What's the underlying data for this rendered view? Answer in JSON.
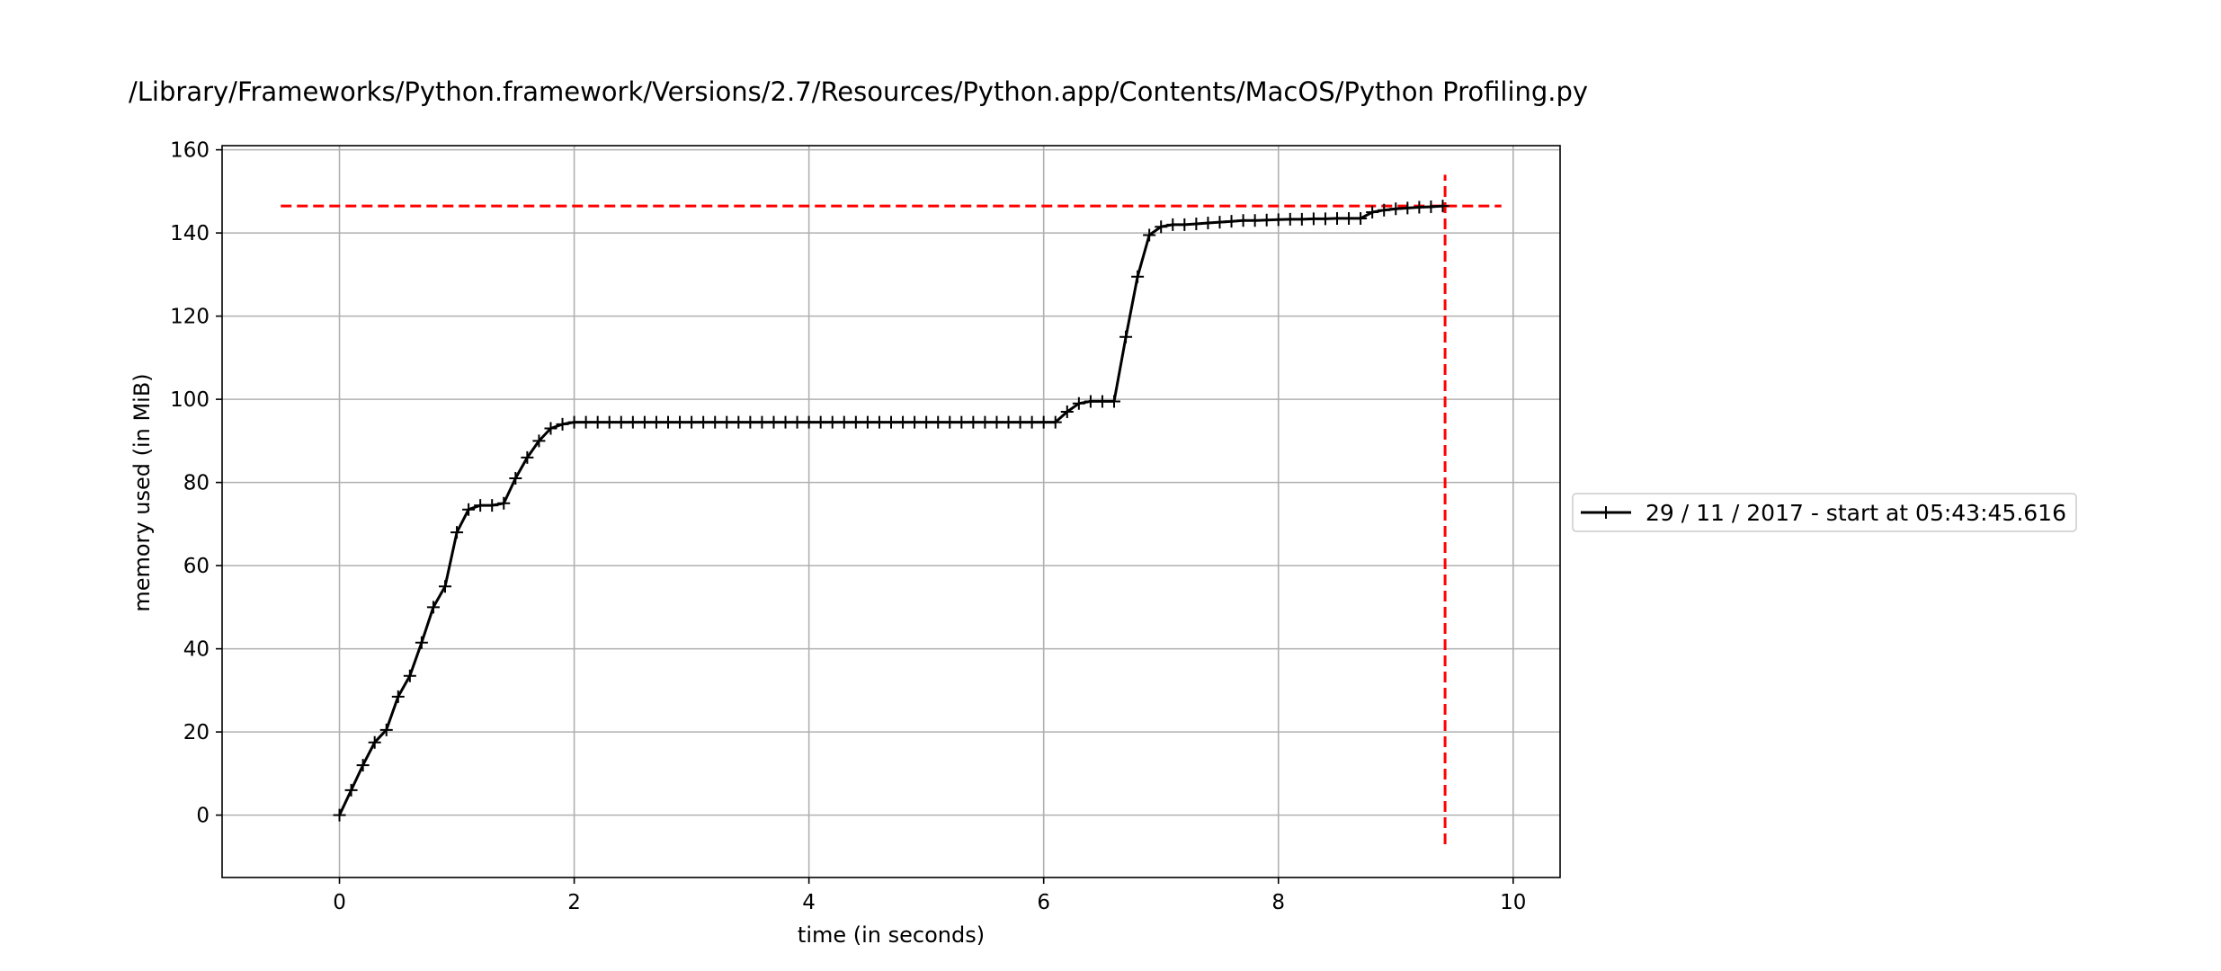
{
  "chart_data": {
    "type": "line",
    "title": "/Library/Frameworks/Python.framework/Versions/2.7/Resources/Python.app/Contents/MacOS/Python Profiling.py",
    "xlabel": "time (in seconds)",
    "ylabel": "memory used (in MiB)",
    "xlim": [
      -1,
      10.4
    ],
    "ylim": [
      -15,
      161
    ],
    "xticks": [
      0,
      2,
      4,
      6,
      8,
      10
    ],
    "xtick_labels": [
      "0",
      "2",
      "4",
      "6",
      "8",
      "10"
    ],
    "yticks": [
      0,
      20,
      40,
      60,
      80,
      100,
      120,
      140,
      160
    ],
    "ytick_labels": [
      "0",
      "20",
      "40",
      "60",
      "80",
      "100",
      "120",
      "140",
      "160"
    ],
    "grid": true,
    "legend_position": "right, outside plot",
    "series": [
      {
        "name": "29 / 11 / 2017 - start at 05:43:45.616",
        "color": "#000000",
        "marker": "+",
        "x": [
          0,
          0.1,
          0.2,
          0.3,
          0.4,
          0.5,
          0.6,
          0.7,
          0.8,
          0.9,
          1.0,
          1.1,
          1.2,
          1.3,
          1.4,
          1.5,
          1.6,
          1.7,
          1.8,
          1.9,
          2.0,
          2.1,
          2.2,
          2.3,
          2.4,
          2.5,
          2.6,
          2.7,
          2.8,
          2.9,
          3.0,
          3.1,
          3.2,
          3.3,
          3.4,
          3.5,
          3.6,
          3.7,
          3.8,
          3.9,
          4.0,
          4.1,
          4.2,
          4.3,
          4.4,
          4.5,
          4.6,
          4.7,
          4.8,
          4.9,
          5.0,
          5.1,
          5.2,
          5.3,
          5.4,
          5.5,
          5.6,
          5.7,
          5.8,
          5.9,
          6.0,
          6.1,
          6.2,
          6.3,
          6.4,
          6.5,
          6.6,
          6.7,
          6.8,
          6.9,
          7.0,
          7.1,
          7.2,
          7.3,
          7.4,
          7.5,
          7.6,
          7.7,
          7.8,
          7.9,
          8.0,
          8.1,
          8.2,
          8.3,
          8.4,
          8.5,
          8.6,
          8.7,
          8.8,
          8.9,
          9.0,
          9.1,
          9.2,
          9.3,
          9.4
        ],
        "y": [
          0,
          6,
          12,
          17.5,
          20.5,
          28.5,
          33.5,
          41.5,
          50,
          55,
          68,
          73.5,
          74.5,
          74.5,
          75,
          81,
          86,
          90,
          93,
          94,
          94.5,
          94.5,
          94.5,
          94.5,
          94.5,
          94.5,
          94.5,
          94.5,
          94.5,
          94.5,
          94.5,
          94.5,
          94.5,
          94.5,
          94.5,
          94.5,
          94.5,
          94.5,
          94.5,
          94.5,
          94.5,
          94.5,
          94.5,
          94.5,
          94.5,
          94.5,
          94.5,
          94.5,
          94.5,
          94.5,
          94.5,
          94.5,
          94.5,
          94.5,
          94.5,
          94.5,
          94.5,
          94.5,
          94.5,
          94.5,
          94.5,
          94.5,
          97,
          99,
          99.5,
          99.5,
          99.5,
          115,
          129.5,
          139.5,
          141.5,
          142,
          142,
          142.2,
          142.4,
          142.6,
          142.8,
          143,
          143,
          143.1,
          143.2,
          143.3,
          143.3,
          143.4,
          143.4,
          143.5,
          143.5,
          143.5,
          145,
          145.5,
          145.8,
          146,
          146.2,
          146.3,
          146.5
        ]
      }
    ],
    "reference_lines": [
      {
        "orientation": "horizontal",
        "value": 146.5,
        "from": -0.5,
        "to": 9.9,
        "color": "#ff0000",
        "style": "dashed"
      },
      {
        "orientation": "vertical",
        "value": 9.42,
        "from": -7,
        "to": 154,
        "color": "#ff0000",
        "style": "dashed"
      }
    ]
  }
}
